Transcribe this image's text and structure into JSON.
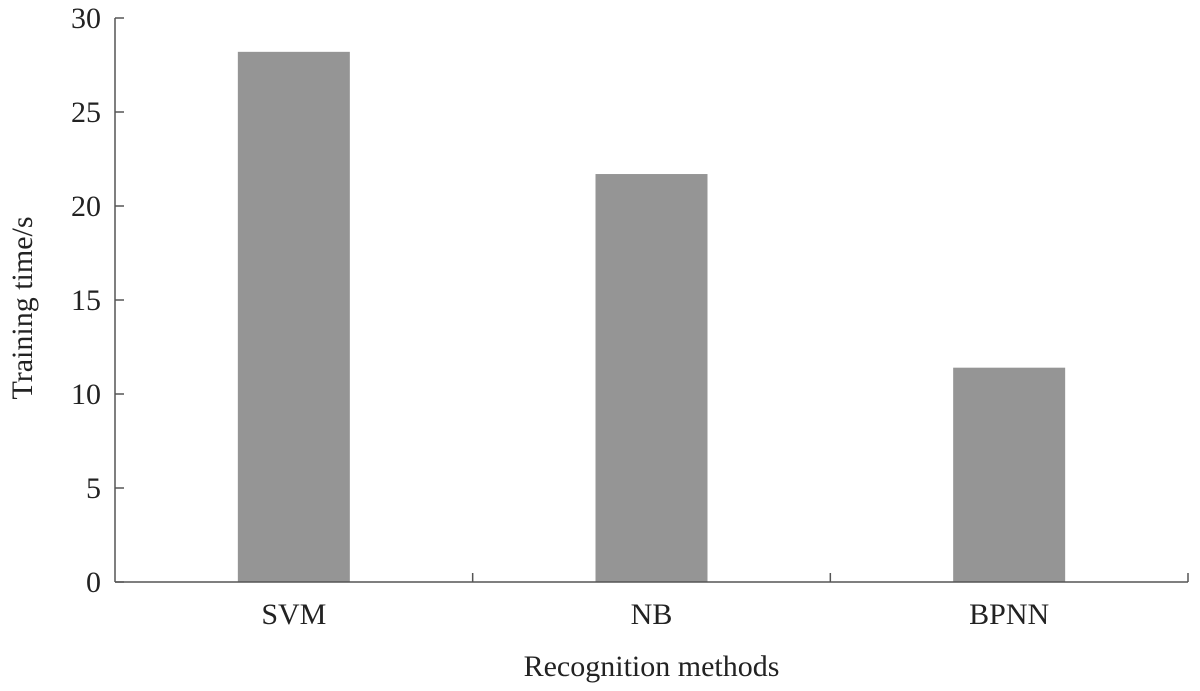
{
  "chart_data": {
    "type": "bar",
    "title": "",
    "xlabel": "Recognition methods",
    "ylabel": "Training time/s",
    "categories": [
      "SVM",
      "NB",
      "BPNN"
    ],
    "values": [
      28.2,
      21.7,
      11.4
    ],
    "ylim": [
      0,
      30
    ],
    "yticks": [
      0,
      5,
      10,
      15,
      20,
      25,
      30
    ],
    "grid": false,
    "legend": "none",
    "bar_color": "#959595",
    "axis_color": "#555555"
  }
}
